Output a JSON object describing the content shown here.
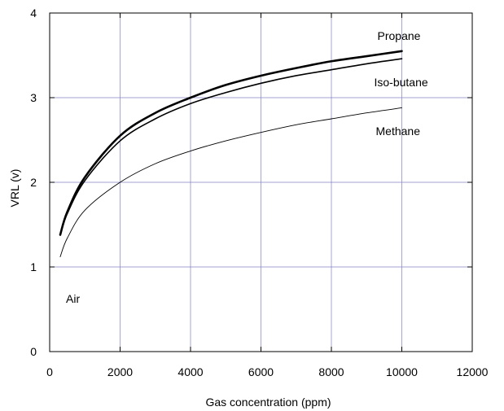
{
  "chart_data": {
    "type": "line",
    "xlabel": "Gas concentration (ppm)",
    "ylabel": "VRL (v)",
    "xlim": [
      0,
      12000
    ],
    "ylim": [
      0,
      4
    ],
    "x_ticks": [
      0,
      2000,
      4000,
      6000,
      8000,
      10000,
      12000
    ],
    "y_ticks": [
      0,
      1,
      2,
      3,
      4
    ],
    "grid": true,
    "series": [
      {
        "name": "Propane",
        "color": "#000000",
        "x": [
          300,
          500,
          1000,
          2000,
          3000,
          4000,
          5000,
          6000,
          7000,
          8000,
          9000,
          10000
        ],
        "y": [
          1.38,
          1.65,
          2.06,
          2.55,
          2.82,
          3.0,
          3.15,
          3.26,
          3.35,
          3.43,
          3.49,
          3.55
        ]
      },
      {
        "name": "Iso-butane",
        "color": "#000000",
        "x": [
          300,
          500,
          1000,
          2000,
          3000,
          4000,
          5000,
          6000,
          7000,
          8000,
          9000,
          10000
        ],
        "y": [
          1.38,
          1.63,
          2.02,
          2.49,
          2.75,
          2.93,
          3.06,
          3.17,
          3.26,
          3.33,
          3.4,
          3.46
        ]
      },
      {
        "name": "Methane",
        "color": "#000000",
        "x": [
          300,
          500,
          1000,
          2000,
          3000,
          4000,
          5000,
          6000,
          7000,
          8000,
          9000,
          10000
        ],
        "y": [
          1.12,
          1.34,
          1.67,
          2.0,
          2.22,
          2.37,
          2.49,
          2.59,
          2.68,
          2.75,
          2.82,
          2.88
        ]
      }
    ],
    "annotations": {
      "air": "Air"
    }
  }
}
